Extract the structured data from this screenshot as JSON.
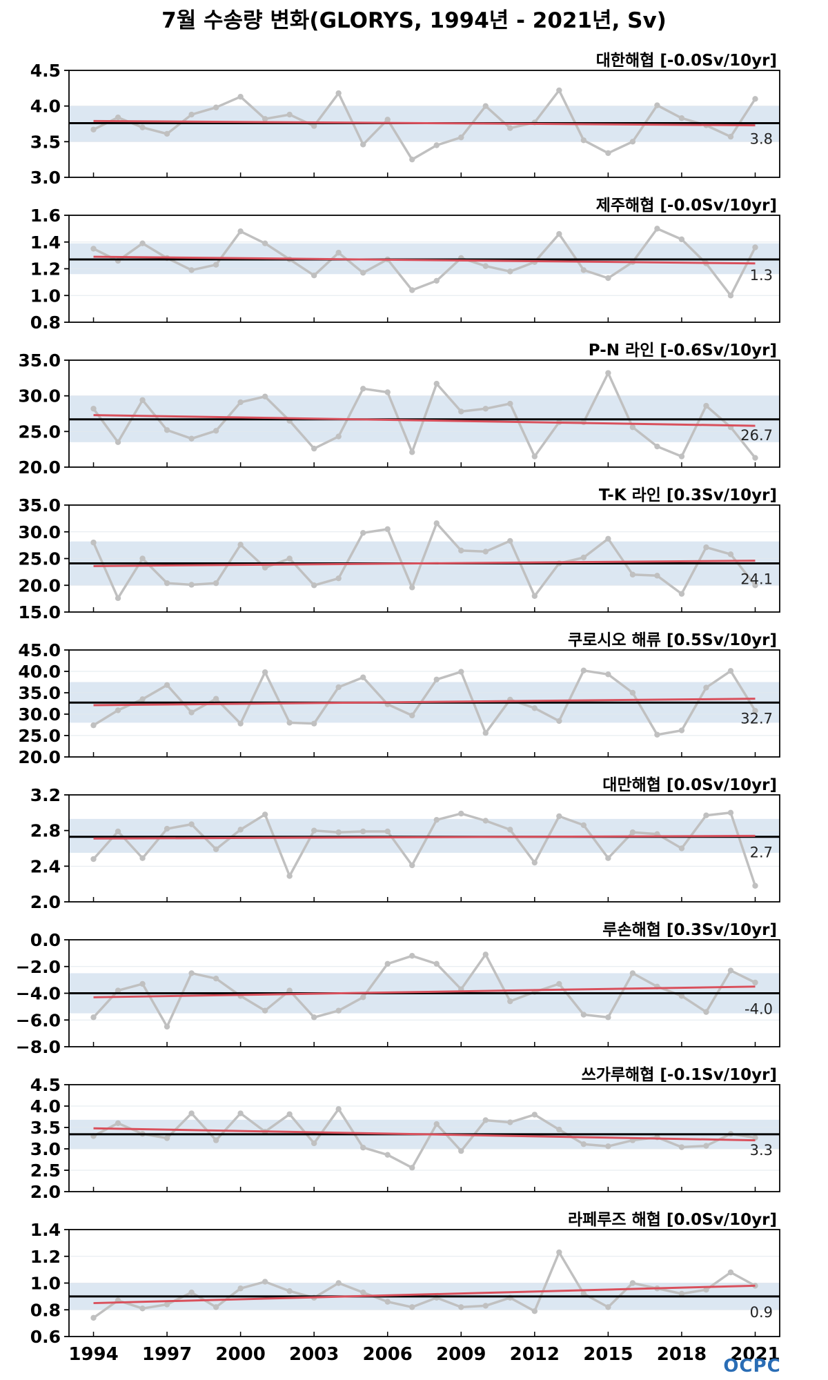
{
  "title": "7월 수송량 변화(GLORYS, 1994년 - 2021년, Sv)",
  "logo": "OCPC",
  "colors": {
    "series": "#c0c0c0",
    "trend": "#d9505c",
    "mean": "#000000",
    "band": "#dce7f2",
    "grid": "#e2e8ee"
  },
  "chart_data": [
    {
      "type": "line",
      "title": "대한해협 [-0.0Sv/10yr]",
      "x": [
        1994,
        1995,
        1996,
        1997,
        1998,
        1999,
        2000,
        2001,
        2002,
        2003,
        2004,
        2005,
        2006,
        2007,
        2008,
        2009,
        2010,
        2011,
        2012,
        2013,
        2014,
        2015,
        2016,
        2017,
        2018,
        2019,
        2020,
        2021
      ],
      "values": [
        3.67,
        3.84,
        3.7,
        3.61,
        3.88,
        3.98,
        4.13,
        3.82,
        3.88,
        3.72,
        4.18,
        3.46,
        3.81,
        3.25,
        3.45,
        3.56,
        4.0,
        3.69,
        3.77,
        4.22,
        3.52,
        3.34,
        3.5,
        4.01,
        3.83,
        3.73,
        3.57,
        4.1
      ],
      "mean": 3.76,
      "mean_label": "3.8",
      "trend_start": 3.79,
      "trend_end": 3.73,
      "band": [
        3.5,
        4.0
      ],
      "ylim": [
        3.0,
        4.5
      ],
      "yticks": [
        3.0,
        3.5,
        4.0,
        4.5
      ],
      "ytick_labels": [
        "3.0",
        "3.5",
        "4.0",
        "4.5"
      ]
    },
    {
      "type": "line",
      "title": "제주해협 [-0.0Sv/10yr]",
      "x": [
        1994,
        1995,
        1996,
        1997,
        1998,
        1999,
        2000,
        2001,
        2002,
        2003,
        2004,
        2005,
        2006,
        2007,
        2008,
        2009,
        2010,
        2011,
        2012,
        2013,
        2014,
        2015,
        2016,
        2017,
        2018,
        2019,
        2020,
        2021
      ],
      "values": [
        1.35,
        1.26,
        1.39,
        1.28,
        1.19,
        1.23,
        1.48,
        1.39,
        1.27,
        1.15,
        1.32,
        1.17,
        1.27,
        1.04,
        1.11,
        1.28,
        1.22,
        1.18,
        1.25,
        1.46,
        1.19,
        1.13,
        1.25,
        1.5,
        1.42,
        1.24,
        1.0,
        1.36
      ],
      "mean": 1.27,
      "mean_label": "1.3",
      "trend_start": 1.29,
      "trend_end": 1.24,
      "band": [
        1.16,
        1.39
      ],
      "ylim": [
        0.8,
        1.6
      ],
      "yticks": [
        0.8,
        1.0,
        1.2,
        1.4,
        1.6
      ],
      "ytick_labels": [
        "0.8",
        "1.0",
        "1.2",
        "1.4",
        "1.6"
      ]
    },
    {
      "type": "line",
      "title": "P-N 라인 [-0.6Sv/10yr]",
      "x": [
        1994,
        1995,
        1996,
        1997,
        1998,
        1999,
        2000,
        2001,
        2002,
        2003,
        2004,
        2005,
        2006,
        2007,
        2008,
        2009,
        2010,
        2011,
        2012,
        2013,
        2014,
        2015,
        2016,
        2017,
        2018,
        2019,
        2020,
        2021
      ],
      "values": [
        28.2,
        23.5,
        29.4,
        25.2,
        24.0,
        25.1,
        29.1,
        29.9,
        26.5,
        22.6,
        24.3,
        31.0,
        30.5,
        22.1,
        31.7,
        27.8,
        28.2,
        28.9,
        21.5,
        26.3,
        26.3,
        33.2,
        25.6,
        22.9,
        21.5,
        28.6,
        25.6,
        21.3
      ],
      "mean": 26.7,
      "mean_label": "26.7",
      "trend_start": 27.3,
      "trend_end": 25.8,
      "band": [
        23.5,
        30.0
      ],
      "ylim": [
        20.0,
        35.0
      ],
      "yticks": [
        20.0,
        25.0,
        30.0,
        35.0
      ],
      "ytick_labels": [
        "20.0",
        "25.0",
        "30.0",
        "35.0"
      ]
    },
    {
      "type": "line",
      "title": "T-K 라인 [0.3Sv/10yr]",
      "x": [
        1994,
        1995,
        1996,
        1997,
        1998,
        1999,
        2000,
        2001,
        2002,
        2003,
        2004,
        2005,
        2006,
        2007,
        2008,
        2009,
        2010,
        2011,
        2012,
        2013,
        2014,
        2015,
        2016,
        2017,
        2018,
        2019,
        2020,
        2021
      ],
      "values": [
        28.0,
        17.6,
        25.0,
        20.4,
        20.1,
        20.4,
        27.6,
        23.3,
        25.0,
        20.0,
        21.3,
        29.8,
        30.5,
        19.6,
        31.6,
        26.5,
        26.3,
        28.3,
        18.0,
        24.1,
        25.2,
        28.7,
        22.0,
        21.8,
        18.4,
        27.1,
        25.8,
        20.0
      ],
      "mean": 24.1,
      "mean_label": "24.1",
      "trend_start": 23.6,
      "trend_end": 24.6,
      "band": [
        20.0,
        28.2
      ],
      "ylim": [
        15.0,
        35.0
      ],
      "yticks": [
        15.0,
        20.0,
        25.0,
        30.0,
        35.0
      ],
      "ytick_labels": [
        "15.0",
        "20.0",
        "25.0",
        "30.0",
        "35.0"
      ]
    },
    {
      "type": "line",
      "title": "쿠로시오 해류 [0.5Sv/10yr]",
      "x": [
        1994,
        1995,
        1996,
        1997,
        1998,
        1999,
        2000,
        2001,
        2002,
        2003,
        2004,
        2005,
        2006,
        2007,
        2008,
        2009,
        2010,
        2011,
        2012,
        2013,
        2014,
        2015,
        2016,
        2017,
        2018,
        2019,
        2020,
        2021
      ],
      "values": [
        27.4,
        30.9,
        33.5,
        36.8,
        30.4,
        33.6,
        27.8,
        39.8,
        28.0,
        27.8,
        36.3,
        38.6,
        32.3,
        29.7,
        38.1,
        39.9,
        25.6,
        33.4,
        31.4,
        28.4,
        40.2,
        39.3,
        35.0,
        25.2,
        26.2,
        36.2,
        40.1,
        30.8
      ],
      "mean": 32.7,
      "mean_label": "32.7",
      "trend_start": 32.1,
      "trend_end": 33.6,
      "band": [
        28.0,
        37.5
      ],
      "ylim": [
        20.0,
        45.0
      ],
      "yticks": [
        20.0,
        25.0,
        30.0,
        35.0,
        40.0,
        45.0
      ],
      "ytick_labels": [
        "20.0",
        "25.0",
        "30.0",
        "35.0",
        "40.0",
        "45.0"
      ]
    },
    {
      "type": "line",
      "title": "대만해협 [0.0Sv/10yr]",
      "x": [
        1994,
        1995,
        1996,
        1997,
        1998,
        1999,
        2000,
        2001,
        2002,
        2003,
        2004,
        2005,
        2006,
        2007,
        2008,
        2009,
        2010,
        2011,
        2012,
        2013,
        2014,
        2015,
        2016,
        2017,
        2018,
        2019,
        2020,
        2021
      ],
      "values": [
        2.48,
        2.79,
        2.49,
        2.82,
        2.87,
        2.59,
        2.81,
        2.98,
        2.29,
        2.8,
        2.78,
        2.79,
        2.79,
        2.41,
        2.92,
        2.99,
        2.91,
        2.81,
        2.44,
        2.96,
        2.86,
        2.49,
        2.78,
        2.76,
        2.6,
        2.97,
        3.0,
        2.18
      ],
      "mean": 2.73,
      "mean_label": "2.7",
      "trend_start": 2.71,
      "trend_end": 2.74,
      "band": [
        2.55,
        2.93
      ],
      "ylim": [
        2.0,
        3.2
      ],
      "yticks": [
        2.0,
        2.4,
        2.8,
        3.2
      ],
      "ytick_labels": [
        "2.0",
        "2.4",
        "2.8",
        "3.2"
      ]
    },
    {
      "type": "line",
      "title": "루손해협 [0.3Sv/10yr]",
      "x": [
        1994,
        1995,
        1996,
        1997,
        1998,
        1999,
        2000,
        2001,
        2002,
        2003,
        2004,
        2005,
        2006,
        2007,
        2008,
        2009,
        2010,
        2011,
        2012,
        2013,
        2014,
        2015,
        2016,
        2017,
        2018,
        2019,
        2020,
        2021
      ],
      "values": [
        -5.8,
        -3.8,
        -3.3,
        -6.5,
        -2.5,
        -2.9,
        -4.2,
        -5.3,
        -3.8,
        -5.8,
        -5.3,
        -4.3,
        -1.8,
        -1.2,
        -1.8,
        -3.7,
        -1.1,
        -4.6,
        -3.9,
        -3.3,
        -5.6,
        -5.8,
        -2.5,
        -3.5,
        -4.2,
        -5.4,
        -2.3,
        -3.2
      ],
      "mean": -4.0,
      "mean_label": "-4.0",
      "trend_start": -4.3,
      "trend_end": -3.5,
      "band": [
        -5.5,
        -2.5
      ],
      "ylim": [
        -8.0,
        0.0
      ],
      "yticks": [
        -8.0,
        -6.0,
        -4.0,
        -2.0,
        0.0
      ],
      "ytick_labels": [
        "−8.0",
        "−6.0",
        "−4.0",
        "−2.0",
        "0.0"
      ]
    },
    {
      "type": "line",
      "title": "쓰가루해협 [-0.1Sv/10yr]",
      "x": [
        1994,
        1995,
        1996,
        1997,
        1998,
        1999,
        2000,
        2001,
        2002,
        2003,
        2004,
        2005,
        2006,
        2007,
        2008,
        2009,
        2010,
        2011,
        2012,
        2013,
        2014,
        2015,
        2016,
        2017,
        2018,
        2019,
        2020,
        2021
      ],
      "values": [
        3.3,
        3.6,
        3.35,
        3.25,
        3.83,
        3.2,
        3.83,
        3.4,
        3.81,
        3.13,
        3.93,
        3.03,
        2.86,
        2.56,
        3.58,
        2.95,
        3.67,
        3.62,
        3.8,
        3.45,
        3.11,
        3.06,
        3.2,
        3.27,
        3.04,
        3.07,
        3.35,
        3.26
      ],
      "mean": 3.34,
      "mean_label": "3.3",
      "trend_start": 3.48,
      "trend_end": 3.2,
      "band": [
        3.0,
        3.68
      ],
      "ylim": [
        2.0,
        4.5
      ],
      "yticks": [
        2.0,
        2.5,
        3.0,
        3.5,
        4.0,
        4.5
      ],
      "ytick_labels": [
        "2.0",
        "2.5",
        "3.0",
        "3.5",
        "4.0",
        "4.5"
      ]
    },
    {
      "type": "line",
      "title": "라페루즈 해협 [0.0Sv/10yr]",
      "x": [
        1994,
        1995,
        1996,
        1997,
        1998,
        1999,
        2000,
        2001,
        2002,
        2003,
        2004,
        2005,
        2006,
        2007,
        2008,
        2009,
        2010,
        2011,
        2012,
        2013,
        2014,
        2015,
        2016,
        2017,
        2018,
        2019,
        2020,
        2021
      ],
      "values": [
        0.74,
        0.87,
        0.81,
        0.84,
        0.93,
        0.82,
        0.96,
        1.01,
        0.94,
        0.89,
        1.0,
        0.93,
        0.86,
        0.82,
        0.89,
        0.82,
        0.83,
        0.89,
        0.79,
        1.23,
        0.92,
        0.82,
        1.0,
        0.96,
        0.92,
        0.95,
        1.08,
        0.98
      ],
      "mean": 0.9,
      "mean_label": "0.9",
      "trend_start": 0.85,
      "trend_end": 0.98,
      "band": [
        0.8,
        1.0
      ],
      "ylim": [
        0.6,
        1.4
      ],
      "yticks": [
        0.6,
        0.8,
        1.0,
        1.2,
        1.4
      ],
      "ytick_labels": [
        "0.6",
        "0.8",
        "1.0",
        "1.2",
        "1.4"
      ]
    }
  ],
  "xaxis": {
    "ticks": [
      1994,
      1997,
      2000,
      2003,
      2006,
      2009,
      2012,
      2015,
      2018,
      2021
    ],
    "tick_labels": [
      "1994",
      "1997",
      "2000",
      "2003",
      "2006",
      "2009",
      "2012",
      "2015",
      "2018",
      "2021"
    ],
    "xlim": [
      1993.0,
      2022.0
    ]
  }
}
